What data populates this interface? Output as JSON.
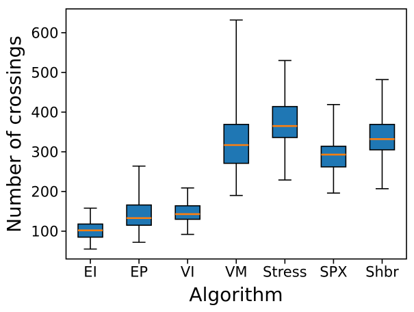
{
  "figure": {
    "xlabel": "Algorithm",
    "ylabel": "Number of crossings"
  },
  "chart_data": {
    "type": "boxplot",
    "title": "",
    "xlabel": "Algorithm",
    "ylabel": "Number of crossings",
    "categories": [
      "EI",
      "EP",
      "VI",
      "VM",
      "Stress",
      "SPX",
      "Shbr"
    ],
    "series": [
      {
        "name": "EI",
        "whislo": 55,
        "q1": 85,
        "med": 102,
        "q3": 118,
        "whishi": 158
      },
      {
        "name": "EP",
        "whislo": 72,
        "q1": 115,
        "med": 133,
        "q3": 166,
        "whishi": 264
      },
      {
        "name": "VI",
        "whislo": 92,
        "q1": 130,
        "med": 143,
        "q3": 164,
        "whishi": 209
      },
      {
        "name": "VM",
        "whislo": 190,
        "q1": 271,
        "med": 317,
        "q3": 369,
        "whishi": 632
      },
      {
        "name": "Stress",
        "whislo": 229,
        "q1": 336,
        "med": 365,
        "q3": 414,
        "whishi": 530
      },
      {
        "name": "SPX",
        "whislo": 196,
        "q1": 262,
        "med": 293,
        "q3": 314,
        "whishi": 419
      },
      {
        "name": "Shbr",
        "whislo": 207,
        "q1": 305,
        "med": 332,
        "q3": 369,
        "whishi": 482
      }
    ],
    "yticks": [
      100,
      200,
      300,
      400,
      500,
      600
    ],
    "ylim": [
      30,
      660
    ],
    "grid": false,
    "legend": null,
    "colors": {
      "box_fill": "#1f77b4",
      "median": "#ff7f0e",
      "line": "#000000",
      "background": "#ffffff"
    }
  }
}
